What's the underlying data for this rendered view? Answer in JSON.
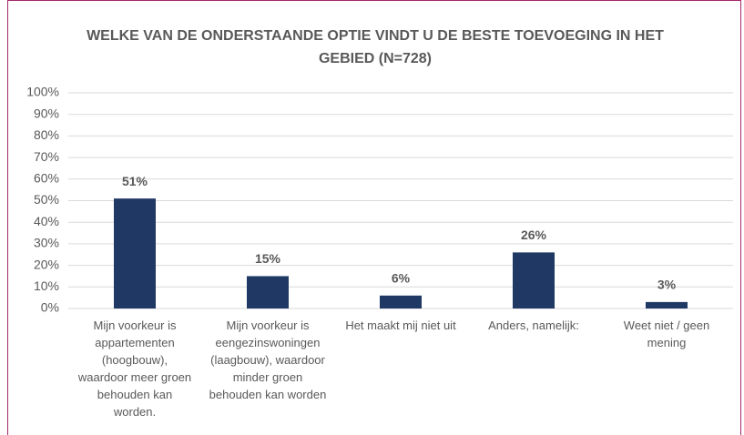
{
  "chart_data": {
    "type": "bar",
    "title": "WELKE VAN DE ONDERSTAANDE OPTIE VINDT U DE BESTE TOEVOEGING IN HET GEBIED (N=728)",
    "categories": [
      "Mijn voorkeur is appartementen (hoogbouw), waardoor meer groen behouden kan worden.",
      "Mijn voorkeur is eengezinswoningen (laagbouw), waardoor minder groen behouden kan worden",
      "Het maakt mij niet uit",
      "Anders, namelijk:",
      "Weet niet / geen mening"
    ],
    "values": [
      51,
      15,
      6,
      26,
      3
    ],
    "value_labels": [
      "51%",
      "15%",
      "6%",
      "26%",
      "3%"
    ],
    "color": "#1f3864",
    "ylim": [
      0,
      100
    ],
    "yticks": [
      {
        "value": 0,
        "label": "0%"
      },
      {
        "value": 10,
        "label": "10%"
      },
      {
        "value": 20,
        "label": "20%"
      },
      {
        "value": 30,
        "label": "30%"
      },
      {
        "value": 40,
        "label": "40%"
      },
      {
        "value": 50,
        "label": "50%"
      },
      {
        "value": 60,
        "label": "60%"
      },
      {
        "value": 70,
        "label": "70%"
      },
      {
        "value": 80,
        "label": "80%"
      },
      {
        "value": 90,
        "label": "90%"
      },
      {
        "value": 100,
        "label": "100%"
      }
    ],
    "grid": true
  }
}
